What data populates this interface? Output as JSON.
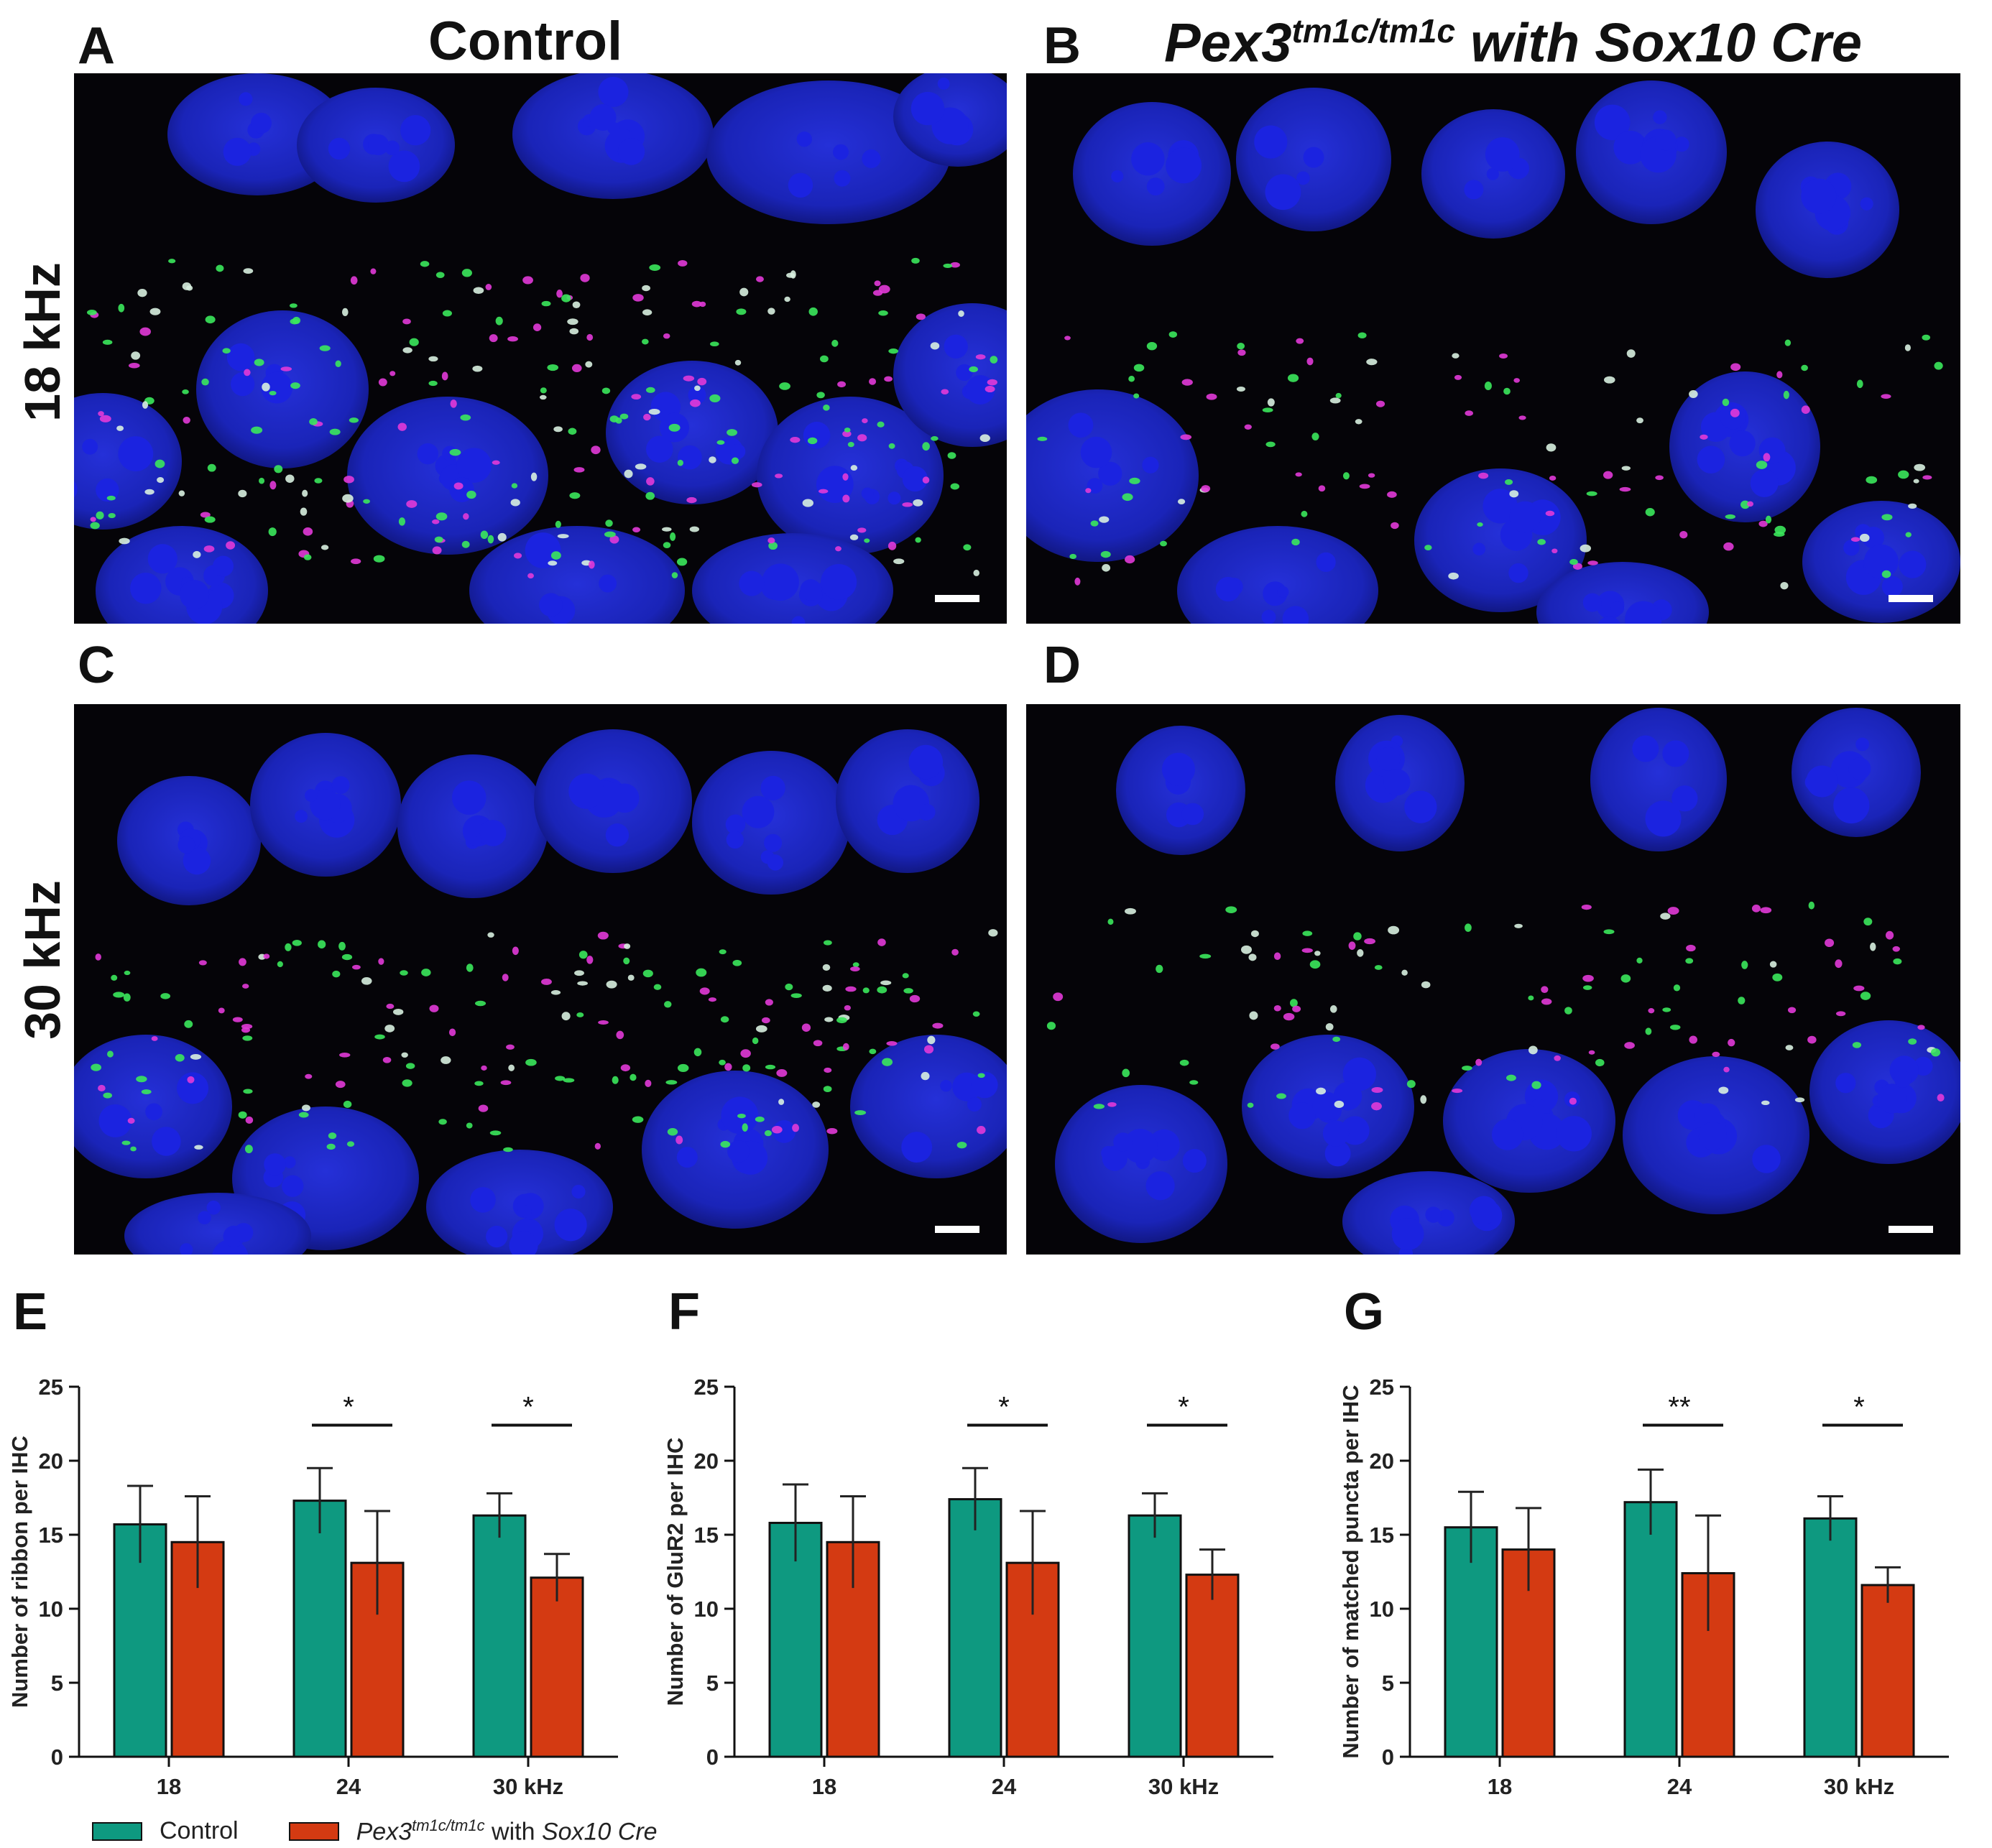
{
  "figure": {
    "column_titles": {
      "control": "Control",
      "mutant_gene": "Pex3",
      "mutant_allele": "tm1c/tm1c",
      "mutant_rest": " with Sox10 Cre"
    },
    "row_labels": [
      "18 kHz",
      "30 kHz"
    ],
    "panel_letters": [
      "A",
      "B",
      "C",
      "D",
      "E",
      "F",
      "G"
    ],
    "colors": {
      "control": "#0E9980",
      "mutant": "#D43A12",
      "nucleus": "#1B23E0",
      "background": "#050408",
      "ribbon": "#E23AD8",
      "glur2": "#3BE85C"
    }
  },
  "legend": {
    "control": "Control",
    "mutant_gene": "Pex3",
    "mutant_allele": "tm1c/tm1c",
    "mutant_with": " with ",
    "mutant_cre": "Sox10 Cre"
  },
  "chart_data": [
    {
      "type": "bar",
      "panel": "E",
      "ylabel": "Number of ribbon per IHC",
      "categories": [
        "18",
        "24",
        "30 kHz"
      ],
      "ylim": [
        0,
        25
      ],
      "yticks": [
        0,
        5,
        10,
        15,
        20,
        25
      ],
      "series": [
        {
          "name": "Control",
          "values": [
            15.7,
            17.3,
            16.3
          ],
          "errors": [
            2.6,
            2.2,
            1.5
          ]
        },
        {
          "name": "Pex3 tm1c/tm1c with Sox10 Cre",
          "values": [
            14.5,
            13.1,
            12.1
          ],
          "errors": [
            3.1,
            3.5,
            1.6
          ]
        }
      ],
      "significance": [
        "",
        "*",
        "*"
      ]
    },
    {
      "type": "bar",
      "panel": "F",
      "ylabel": "Number of GluR2 per IHC",
      "categories": [
        "18",
        "24",
        "30 kHz"
      ],
      "ylim": [
        0,
        25
      ],
      "yticks": [
        0,
        5,
        10,
        15,
        20,
        25
      ],
      "series": [
        {
          "name": "Control",
          "values": [
            15.8,
            17.4,
            16.3
          ],
          "errors": [
            2.6,
            2.1,
            1.5
          ]
        },
        {
          "name": "Pex3 tm1c/tm1c with Sox10 Cre",
          "values": [
            14.5,
            13.1,
            12.3
          ],
          "errors": [
            3.1,
            3.5,
            1.7
          ]
        }
      ],
      "significance": [
        "",
        "*",
        "*"
      ]
    },
    {
      "type": "bar",
      "panel": "G",
      "ylabel": "Number of matched puncta per IHC",
      "categories": [
        "18",
        "24",
        "30 kHz"
      ],
      "ylim": [
        0,
        25
      ],
      "yticks": [
        0,
        5,
        10,
        15,
        20,
        25
      ],
      "series": [
        {
          "name": "Control",
          "values": [
            15.5,
            17.2,
            16.1
          ],
          "errors": [
            2.4,
            2.2,
            1.5
          ]
        },
        {
          "name": "Pex3 tm1c/tm1c with Sox10 Cre",
          "values": [
            14.0,
            12.4,
            11.6
          ],
          "errors": [
            2.8,
            3.9,
            1.2
          ]
        }
      ],
      "significance": [
        "",
        "**",
        "*"
      ]
    }
  ]
}
